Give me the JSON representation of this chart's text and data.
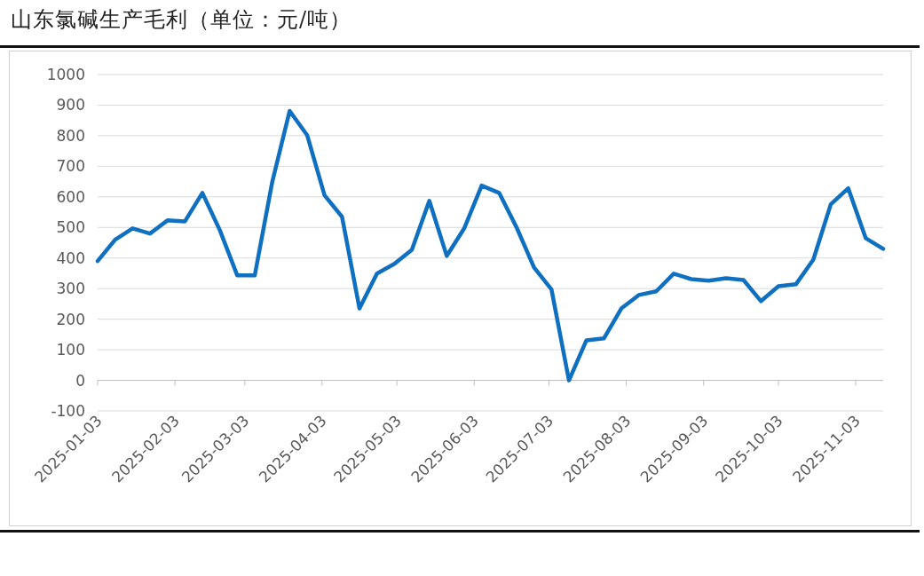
{
  "chart_data": {
    "type": "line",
    "title": "山东氯碱生产毛利（单位：元/吨）",
    "x": [
      "2025-01-03",
      "2025-01-10",
      "2025-01-17",
      "2025-01-24",
      "2025-01-31",
      "2025-02-07",
      "2025-02-14",
      "2025-02-21",
      "2025-02-28",
      "2025-03-07",
      "2025-03-14",
      "2025-03-21",
      "2025-03-28",
      "2025-04-04",
      "2025-04-11",
      "2025-04-18",
      "2025-04-25",
      "2025-05-02",
      "2025-05-09",
      "2025-05-16",
      "2025-05-23",
      "2025-05-30",
      "2025-06-06",
      "2025-06-13",
      "2025-06-20",
      "2025-06-27",
      "2025-07-04",
      "2025-07-11",
      "2025-07-18",
      "2025-07-25",
      "2025-08-01",
      "2025-08-08",
      "2025-08-15",
      "2025-08-22",
      "2025-08-29",
      "2025-09-05",
      "2025-09-12",
      "2025-09-19",
      "2025-09-26",
      "2025-10-03",
      "2025-10-10",
      "2025-10-17",
      "2025-10-24",
      "2025-10-31",
      "2025-11-07",
      "2025-11-14"
    ],
    "series": [
      {
        "color": "#0f6fc0",
        "values": [
          390,
          460,
          497,
          480,
          523,
          520,
          613,
          491,
          343,
          343,
          648,
          881,
          802,
          605,
          535,
          235,
          349,
          381,
          427,
          587,
          407,
          497,
          637,
          613,
          500,
          369,
          297,
          0,
          131,
          137,
          235,
          279,
          291,
          349,
          331,
          326,
          334,
          328,
          259,
          308,
          314,
          395,
          576,
          628,
          465,
          430
        ]
      }
    ],
    "xlim": [
      "2025-01-03",
      "2025-11-14"
    ],
    "xticks": [
      "2025-01-03",
      "2025-02-03",
      "2025-03-03",
      "2025-04-03",
      "2025-05-03",
      "2025-06-03",
      "2025-07-03",
      "2025-08-03",
      "2025-09-03",
      "2025-10-03",
      "2025-11-03"
    ],
    "ylim": [
      -100,
      1000
    ],
    "yticks": [
      -100,
      0,
      100,
      200,
      300,
      400,
      500,
      600,
      700,
      800,
      900,
      1000
    ],
    "grid": "y",
    "line_style": "solid"
  }
}
